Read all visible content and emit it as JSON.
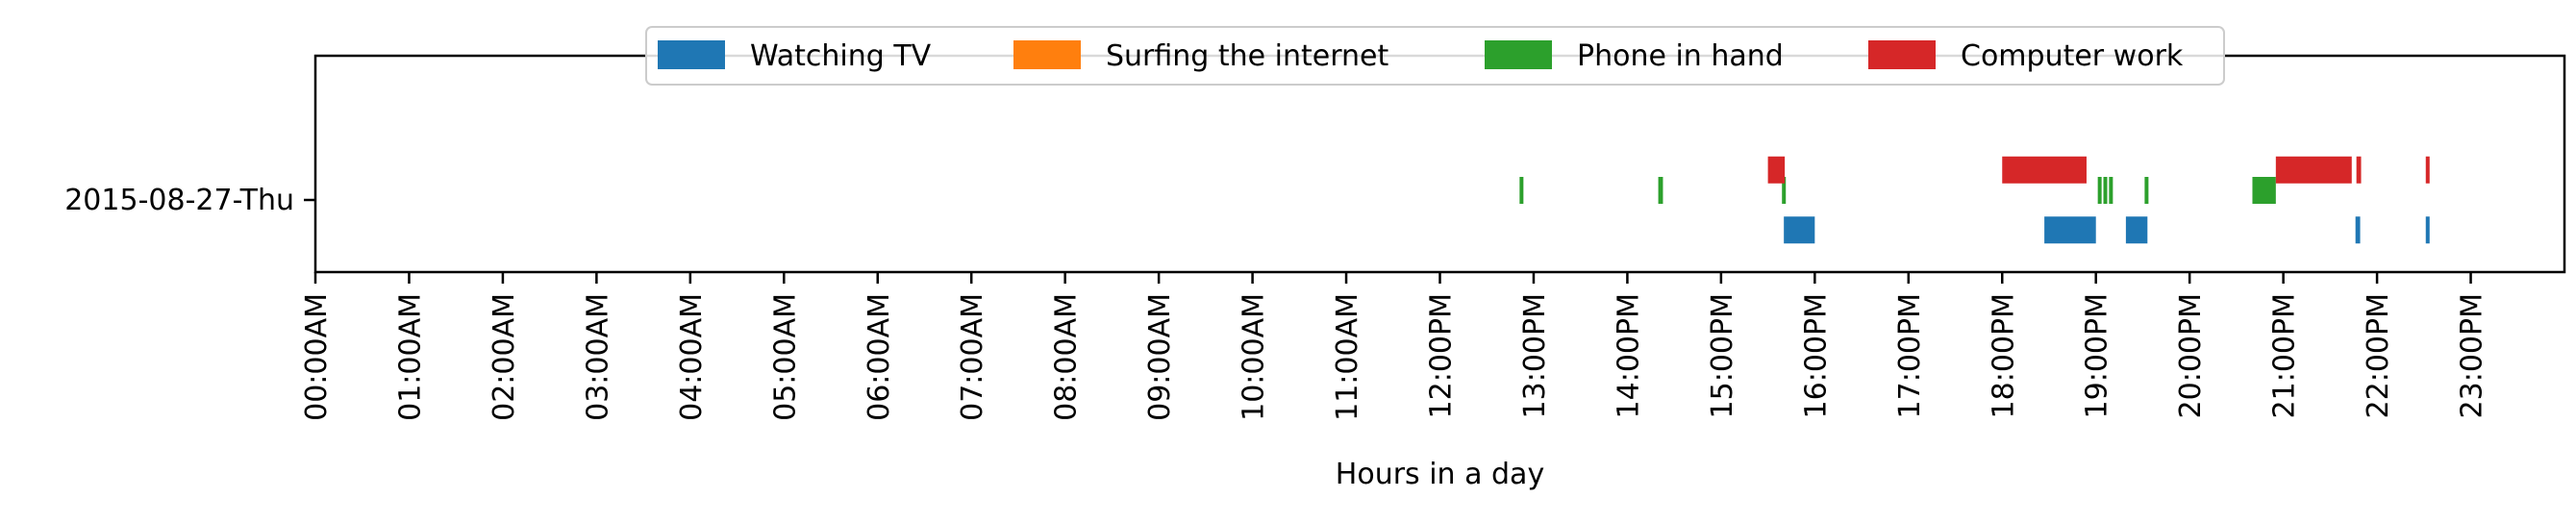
{
  "chart_data": {
    "type": "timeline",
    "xlabel": "Hours in a day",
    "xlim": [
      0,
      24
    ],
    "x_ticks": [
      "00:00AM",
      "01:00AM",
      "02:00AM",
      "03:00AM",
      "04:00AM",
      "05:00AM",
      "06:00AM",
      "07:00AM",
      "08:00AM",
      "09:00AM",
      "10:00AM",
      "11:00AM",
      "12:00PM",
      "13:00PM",
      "14:00PM",
      "15:00PM",
      "16:00PM",
      "17:00PM",
      "18:00PM",
      "19:00PM",
      "20:00PM",
      "21:00PM",
      "22:00PM",
      "23:00PM"
    ],
    "y_categories": [
      "2015-08-27-Thu"
    ],
    "legend_position": "top-center",
    "series": [
      {
        "name": "Watching TV",
        "color": "#1f77b4",
        "lane": -0.25,
        "intervals": [
          [
            15.67,
            16.0
          ],
          [
            18.45,
            19.0
          ],
          [
            19.32,
            19.55
          ],
          [
            21.77,
            21.82
          ],
          [
            22.52,
            22.55
          ]
        ]
      },
      {
        "name": "Surfing the internet",
        "color": "#ff7f0e",
        "lane": -0.08,
        "intervals": []
      },
      {
        "name": "Phone in hand",
        "color": "#2ca02c",
        "lane": 0.08,
        "intervals": [
          [
            12.85,
            12.88
          ],
          [
            14.33,
            14.38
          ],
          [
            15.65,
            15.67
          ],
          [
            19.02,
            19.06
          ],
          [
            19.08,
            19.12
          ],
          [
            19.14,
            19.18
          ],
          [
            19.52,
            19.55
          ],
          [
            20.67,
            20.92
          ]
        ]
      },
      {
        "name": "Computer work",
        "color": "#d62728",
        "lane": 0.25,
        "intervals": [
          [
            15.5,
            15.68
          ],
          [
            18.0,
            18.9
          ],
          [
            20.92,
            21.73
          ],
          [
            21.78,
            21.83
          ],
          [
            22.52,
            22.55
          ]
        ]
      }
    ]
  }
}
